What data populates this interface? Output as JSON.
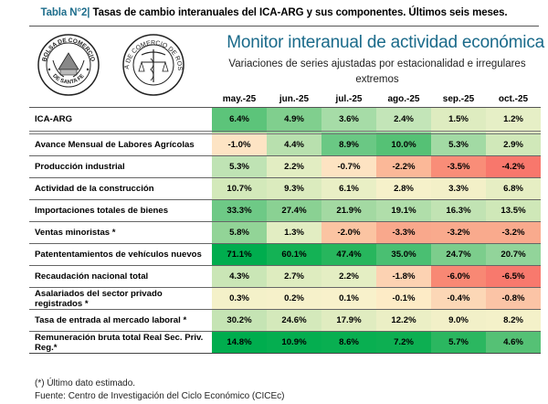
{
  "header": {
    "table_prefix": "Tabla N°2|",
    "table_title": " Tasas de cambio interanuales del ICA-ARG y sus componentes. Últimos seis meses.",
    "monitor_title": "Monitor interanual de actividad económica",
    "monitor_subtitle": "Variaciones de series ajustadas por estacionalidad e irregulares extremos"
  },
  "logos": [
    {
      "name": "bolsa-comercio-santa-fe-logo",
      "text_top": "BOLSA DE COMERCIO",
      "text_bottom": "DE SANTA FE"
    },
    {
      "name": "bolsa-comercio-rosario-logo",
      "text": "BOLSA DE COMERCIO DE ROSARIO"
    }
  ],
  "table": {
    "columns": [
      "may.-25",
      "jun.-25",
      "jul.-25",
      "ago.-25",
      "sep.-25",
      "oct.-25"
    ],
    "rows": [
      {
        "label": "ICA-ARG",
        "values": [
          "6.4%",
          "4.9%",
          "3.6%",
          "2.4%",
          "1.5%",
          "1.2%"
        ],
        "colors": [
          "#5cc47a",
          "#80cf8e",
          "#a6dca7",
          "#c3e5b8",
          "#deecc0",
          "#e6efc6"
        ]
      },
      {
        "label": "Avance Mensual de Labores Agrícolas",
        "values": [
          "-1.0%",
          "4.4%",
          "8.9%",
          "10.0%",
          "5.3%",
          "2.9%"
        ],
        "colors": [
          "#fde4c4",
          "#b8e0ae",
          "#6ac884",
          "#55c175",
          "#a2daa4",
          "#d0e8b9"
        ]
      },
      {
        "label": "Producción industrial",
        "values": [
          "5.3%",
          "2.2%",
          "-0.7%",
          "-2.2%",
          "-3.5%",
          "-4.2%"
        ],
        "colors": [
          "#bfe3b4",
          "#e2edc2",
          "#fde3c2",
          "#fbb898",
          "#f98d78",
          "#f8776c"
        ]
      },
      {
        "label": "Actividad de la construcción",
        "values": [
          "10.7%",
          "9.3%",
          "6.1%",
          "2.8%",
          "3.3%",
          "6.8%"
        ],
        "colors": [
          "#d3e9ba",
          "#dbebbe",
          "#e9efc5",
          "#f6f1ca",
          "#f3f0c8",
          "#e6eec3"
        ]
      },
      {
        "label": "Importaciones totales de bienes",
        "values": [
          "33.3%",
          "27.4%",
          "21.9%",
          "19.1%",
          "16.3%",
          "13.5%"
        ],
        "colors": [
          "#6ec986",
          "#8ad193",
          "#a3d9a2",
          "#b0deaa",
          "#c1e3b3",
          "#cfe8b8"
        ]
      },
      {
        "label": "Ventas minoristas *",
        "values": [
          "5.8%",
          "1.3%",
          "-2.0%",
          "-3.3%",
          "-3.2%",
          "-3.2%"
        ],
        "colors": [
          "#92d497",
          "#e2edc2",
          "#fbc4a2",
          "#f9a88c",
          "#f9aa8d",
          "#f9aa8d"
        ]
      },
      {
        "label": "Patententamientos de vehículos nuevos",
        "values": [
          "71.1%",
          "60.1%",
          "47.4%",
          "35.0%",
          "24.7%",
          "20.7%"
        ],
        "colors": [
          "#00ad4e",
          "#14b255",
          "#27b65d",
          "#4abf72",
          "#7ccd8c",
          "#92d49a"
        ]
      },
      {
        "label": "Recaudación nacional total",
        "values": [
          "4.3%",
          "2.7%",
          "2.2%",
          "-1.8%",
          "-6.0%",
          "-6.5%"
        ],
        "colors": [
          "#cae6b6",
          "#deecbf",
          "#e4eec3",
          "#fcd2b2",
          "#f88874",
          "#f8796d"
        ]
      },
      {
        "label": "Asalariados del sector privado registrados *",
        "values": [
          "0.3%",
          "0.2%",
          "0.1%",
          "-0.1%",
          "-0.4%",
          "-0.8%"
        ],
        "colors": [
          "#f4f1c9",
          "#f6f1ca",
          "#f8f1cb",
          "#fdebc6",
          "#fcd7b6",
          "#fbc4a6"
        ]
      },
      {
        "label": "Tasa de entrada al mercado laboral *",
        "values": [
          "30.2%",
          "24.6%",
          "17.9%",
          "12.2%",
          "9.0%",
          "8.2%"
        ],
        "colors": [
          "#c5e4b4",
          "#d4e9bb",
          "#e0ecc0",
          "#ebefc5",
          "#f2f0c8",
          "#f4f1c9"
        ]
      },
      {
        "label": "Remuneración bruta total Real Sec. Priv. Reg.*",
        "values": [
          "14.8%",
          "10.9%",
          "8.6%",
          "7.2%",
          "5.7%",
          "4.6%"
        ],
        "colors": [
          "#00ad4e",
          "#05ae50",
          "#09af51",
          "#0daf52",
          "#2bb760",
          "#55c175"
        ]
      }
    ]
  },
  "footnotes": {
    "note": "(*) Último dato estimado.",
    "source": "Fuente: Centro de Investigación del Ciclo Económico (CICEc)"
  }
}
